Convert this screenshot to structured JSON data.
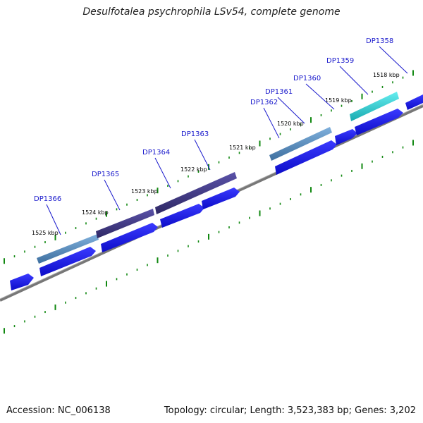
{
  "title": "Desulfotalea psychrophila LSv54, complete genome",
  "footer": {
    "accession": "Accession: NC_006138",
    "summary": "Topology: circular; Length: 3,523,383 bp; Genes: 3,202"
  },
  "kbp_ticks": [
    "1525 kbp",
    "1524 kbp",
    "1523 kbp",
    "1522 kbp",
    "1521 kbp",
    "1520 kbp",
    "1519 kbp",
    "1518 kbp"
  ],
  "genes": [
    "DP1366",
    "DP1365",
    "DP1364",
    "DP1363",
    "DP1362",
    "DP1361",
    "DP1360",
    "DP1359",
    "DP1358"
  ],
  "colors": {
    "backbone": "#777777",
    "tick": "#118811",
    "label": "#1a1acc",
    "cds": "#1a1aee",
    "gene_steel": "#4a7fb2",
    "gene_purple": "#3d3580",
    "gene_cyan": "#22c8cc"
  }
}
